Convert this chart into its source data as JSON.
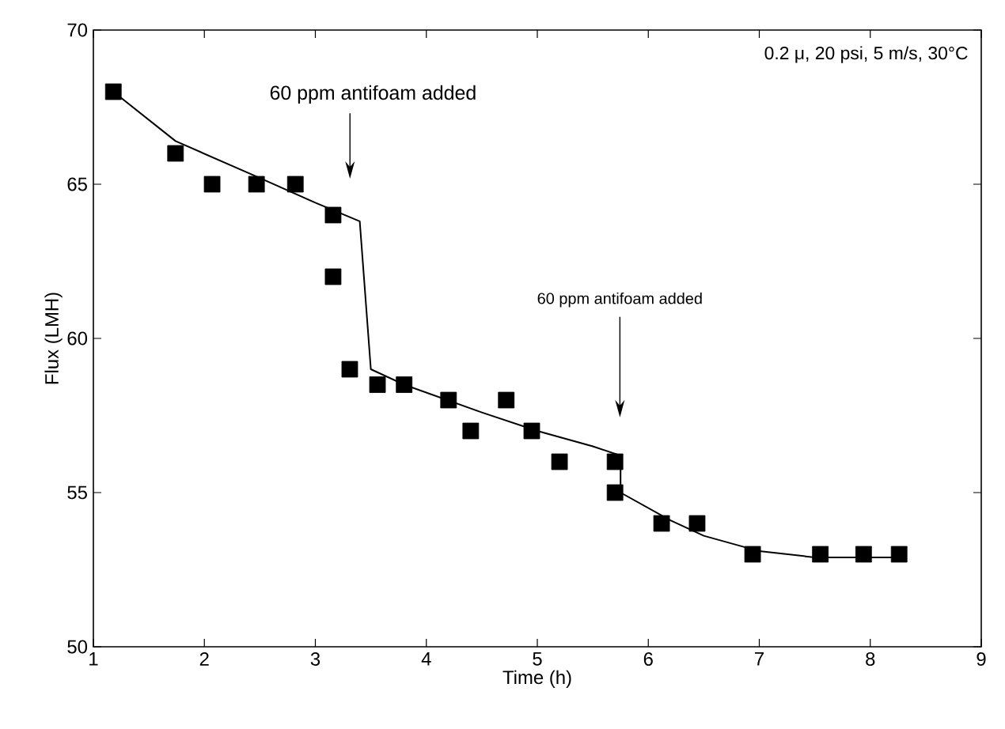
{
  "chart_data": {
    "type": "scatter",
    "xlabel": "Time (h)",
    "ylabel": "Flux (LMH)",
    "xlim": [
      1,
      9
    ],
    "ylim": [
      50,
      70
    ],
    "xticks": [
      1,
      2,
      3,
      4,
      5,
      6,
      7,
      8,
      9
    ],
    "yticks": [
      50,
      55,
      60,
      65,
      70
    ],
    "grid": false,
    "series": [
      {
        "marker": "square",
        "color": "#000000",
        "x": [
          1.18,
          1.74,
          2.07,
          2.47,
          2.82,
          3.16,
          3.16,
          3.31,
          3.56,
          3.8,
          4.2,
          4.4,
          4.72,
          4.95,
          5.2,
          5.7,
          5.7,
          6.12,
          6.44,
          6.94,
          7.55,
          7.94,
          8.26
        ],
        "values": [
          68,
          66,
          65,
          65,
          65,
          64,
          62,
          59,
          58.5,
          58.5,
          58,
          57,
          58,
          57,
          56,
          56,
          55,
          54,
          54,
          53,
          53,
          53,
          53
        ]
      },
      {
        "type": "line",
        "marker": "none",
        "line_style": "solid",
        "color": "#000000",
        "x": [
          1.18,
          1.74,
          2.5,
          3.0,
          3.4,
          3.5,
          3.8,
          4.5,
          5.0,
          5.5,
          5.75,
          5.75,
          6.2,
          6.5,
          7.0,
          7.5,
          8.26
        ],
        "values": [
          68,
          66.4,
          65.2,
          64.4,
          63.8,
          59,
          58.5,
          57.6,
          57,
          56.5,
          56.2,
          55,
          54.1,
          53.6,
          53.1,
          52.9,
          52.9
        ]
      }
    ],
    "annotations": [
      "0.2 μ, 20 psi, 5 m/s, 30°C",
      "60 ppm antifoam added",
      "60 ppm antifoam added"
    ]
  }
}
